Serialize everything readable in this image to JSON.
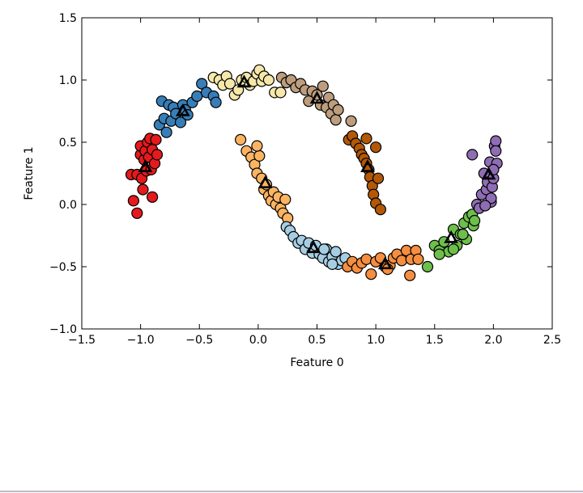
{
  "chart_data": {
    "type": "scatter",
    "xlabel": "Feature 0",
    "ylabel": "Feature 1",
    "xlim": [
      -1.5,
      2.5
    ],
    "ylim": [
      -1.0,
      1.5
    ],
    "xticks": [
      {
        "value": -1.5,
        "label": "−1.5"
      },
      {
        "value": -1.0,
        "label": "−1.0"
      },
      {
        "value": -0.5,
        "label": "−0.5"
      },
      {
        "value": 0.0,
        "label": "0.0"
      },
      {
        "value": 0.5,
        "label": "0.5"
      },
      {
        "value": 1.0,
        "label": "1.0"
      },
      {
        "value": 1.5,
        "label": "1.5"
      },
      {
        "value": 2.0,
        "label": "2.0"
      },
      {
        "value": 2.5,
        "label": "2.5"
      }
    ],
    "yticks": [
      {
        "value": -1.0,
        "label": "−1.0"
      },
      {
        "value": -0.5,
        "label": "−0.5"
      },
      {
        "value": 0.0,
        "label": "0.0"
      },
      {
        "value": 0.5,
        "label": "0.5"
      },
      {
        "value": 1.0,
        "label": "1.0"
      },
      {
        "value": 1.5,
        "label": "1.5"
      }
    ],
    "grid": false,
    "clusters": [
      {
        "color": "#e41a1c",
        "centroid": [
          -0.96,
          0.3
        ],
        "points": [
          [
            -1.08,
            0.24
          ],
          [
            -1.06,
            0.03
          ],
          [
            -1.03,
            -0.07
          ],
          [
            -1.03,
            0.24
          ],
          [
            -1.0,
            0.4
          ],
          [
            -1.0,
            0.47
          ],
          [
            -0.99,
            0.21
          ],
          [
            -0.98,
            0.12
          ],
          [
            -0.97,
            0.36
          ],
          [
            -0.96,
            0.43
          ],
          [
            -0.95,
            0.27
          ],
          [
            -0.94,
            0.5
          ],
          [
            -0.93,
            0.38
          ],
          [
            -0.92,
            0.53
          ],
          [
            -0.91,
            0.28
          ],
          [
            -0.9,
            0.06
          ],
          [
            -0.9,
            0.44
          ],
          [
            -0.88,
            0.33
          ],
          [
            -0.87,
            0.52
          ],
          [
            -0.86,
            0.4
          ]
        ]
      },
      {
        "color": "#377eb8",
        "centroid": [
          -0.64,
          0.75
        ],
        "points": [
          [
            -0.84,
            0.64
          ],
          [
            -0.82,
            0.83
          ],
          [
            -0.8,
            0.69
          ],
          [
            -0.78,
            0.58
          ],
          [
            -0.76,
            0.8
          ],
          [
            -0.74,
            0.67
          ],
          [
            -0.72,
            0.78
          ],
          [
            -0.7,
            0.73
          ],
          [
            -0.66,
            0.66
          ],
          [
            -0.64,
            0.8
          ],
          [
            -0.62,
            0.76
          ],
          [
            -0.6,
            0.72
          ],
          [
            -0.56,
            0.82
          ],
          [
            -0.52,
            0.87
          ],
          [
            -0.48,
            0.97
          ],
          [
            -0.44,
            0.9
          ],
          [
            -0.38,
            0.87
          ],
          [
            -0.36,
            0.82
          ]
        ]
      },
      {
        "color": "#f6e8aa",
        "centroid": [
          -0.12,
          0.98
        ],
        "points": [
          [
            -0.38,
            1.02
          ],
          [
            -0.33,
            1.0
          ],
          [
            -0.3,
            0.96
          ],
          [
            -0.27,
            1.03
          ],
          [
            -0.24,
            0.97
          ],
          [
            -0.2,
            0.88
          ],
          [
            -0.17,
            0.92
          ],
          [
            -0.14,
            1.0
          ],
          [
            -0.1,
            1.02
          ],
          [
            -0.07,
            0.96
          ],
          [
            -0.04,
            0.99
          ],
          [
            -0.01,
            1.05
          ],
          [
            0.01,
            1.08
          ],
          [
            0.03,
            0.99
          ],
          [
            0.05,
            1.03
          ],
          [
            0.09,
            1.0
          ],
          [
            0.14,
            0.9
          ],
          [
            0.19,
            0.9
          ]
        ]
      },
      {
        "color": "#bd9d7e",
        "centroid": [
          0.5,
          0.85
        ],
        "points": [
          [
            0.2,
            1.02
          ],
          [
            0.24,
            0.98
          ],
          [
            0.28,
            1.0
          ],
          [
            0.32,
            0.94
          ],
          [
            0.36,
            0.97
          ],
          [
            0.4,
            0.92
          ],
          [
            0.43,
            0.83
          ],
          [
            0.46,
            0.91
          ],
          [
            0.5,
            0.88
          ],
          [
            0.53,
            0.8
          ],
          [
            0.55,
            0.95
          ],
          [
            0.58,
            0.78
          ],
          [
            0.6,
            0.86
          ],
          [
            0.62,
            0.73
          ],
          [
            0.64,
            0.8
          ],
          [
            0.66,
            0.68
          ],
          [
            0.68,
            0.76
          ],
          [
            0.79,
            0.67
          ]
        ]
      },
      {
        "color": "#b35806",
        "centroid": [
          0.93,
          0.3
        ],
        "points": [
          [
            0.77,
            0.52
          ],
          [
            0.8,
            0.55
          ],
          [
            0.83,
            0.49
          ],
          [
            0.86,
            0.45
          ],
          [
            0.88,
            0.4
          ],
          [
            0.9,
            0.37
          ],
          [
            0.92,
            0.33
          ],
          [
            0.94,
            0.28
          ],
          [
            0.95,
            0.22
          ],
          [
            0.97,
            0.15
          ],
          [
            0.98,
            0.08
          ],
          [
            1.0,
            0.01
          ],
          [
            1.02,
            0.21
          ],
          [
            1.04,
            -0.04
          ],
          [
            1.0,
            0.46
          ],
          [
            0.92,
            0.53
          ]
        ]
      },
      {
        "color": "#fdb462",
        "centroid": [
          0.06,
          0.17
        ],
        "points": [
          [
            -0.15,
            0.52
          ],
          [
            -0.1,
            0.43
          ],
          [
            -0.06,
            0.38
          ],
          [
            -0.03,
            0.32
          ],
          [
            -0.01,
            0.25
          ],
          [
            0.01,
            0.39
          ],
          [
            0.03,
            0.21
          ],
          [
            0.05,
            0.12
          ],
          [
            0.07,
            0.16
          ],
          [
            0.09,
            0.07
          ],
          [
            0.11,
            0.03
          ],
          [
            0.13,
            0.1
          ],
          [
            0.15,
            0.0
          ],
          [
            0.17,
            0.06
          ],
          [
            0.19,
            -0.03
          ],
          [
            0.21,
            -0.07
          ],
          [
            0.23,
            0.04
          ],
          [
            0.25,
            -0.11
          ],
          [
            -0.01,
            0.47
          ]
        ]
      },
      {
        "color": "#a6cee3",
        "centroid": [
          0.47,
          -0.35
        ],
        "points": [
          [
            0.24,
            -0.18
          ],
          [
            0.27,
            -0.21
          ],
          [
            0.3,
            -0.26
          ],
          [
            0.34,
            -0.31
          ],
          [
            0.37,
            -0.29
          ],
          [
            0.4,
            -0.36
          ],
          [
            0.43,
            -0.31
          ],
          [
            0.46,
            -0.39
          ],
          [
            0.49,
            -0.33
          ],
          [
            0.52,
            -0.4
          ],
          [
            0.55,
            -0.43
          ],
          [
            0.58,
            -0.36
          ],
          [
            0.6,
            -0.46
          ],
          [
            0.63,
            -0.42
          ],
          [
            0.66,
            -0.38
          ],
          [
            0.68,
            -0.48
          ],
          [
            0.71,
            -0.45
          ],
          [
            0.74,
            -0.43
          ],
          [
            0.63,
            -0.48
          ],
          [
            0.56,
            -0.36
          ]
        ]
      },
      {
        "color": "#f58e3f",
        "centroid": [
          1.08,
          -0.48
        ],
        "points": [
          [
            0.76,
            -0.5
          ],
          [
            0.8,
            -0.46
          ],
          [
            0.84,
            -0.51
          ],
          [
            0.88,
            -0.47
          ],
          [
            0.92,
            -0.44
          ],
          [
            0.96,
            -0.56
          ],
          [
            1.0,
            -0.46
          ],
          [
            1.04,
            -0.43
          ],
          [
            1.08,
            -0.5
          ],
          [
            1.12,
            -0.49
          ],
          [
            1.15,
            -0.43
          ],
          [
            1.18,
            -0.4
          ],
          [
            1.22,
            -0.45
          ],
          [
            1.26,
            -0.37
          ],
          [
            1.29,
            -0.57
          ],
          [
            1.3,
            -0.44
          ],
          [
            1.34,
            -0.37
          ],
          [
            1.36,
            -0.44
          ],
          [
            1.1,
            -0.52
          ]
        ]
      },
      {
        "color": "#6dbf4b",
        "centroid": [
          1.64,
          -0.27
        ],
        "points": [
          [
            1.44,
            -0.5
          ],
          [
            1.5,
            -0.33
          ],
          [
            1.54,
            -0.37
          ],
          [
            1.58,
            -0.3
          ],
          [
            1.62,
            -0.38
          ],
          [
            1.66,
            -0.2
          ],
          [
            1.69,
            -0.33
          ],
          [
            1.72,
            -0.24
          ],
          [
            1.75,
            -0.15
          ],
          [
            1.77,
            -0.28
          ],
          [
            1.79,
            -0.1
          ],
          [
            1.82,
            -0.08
          ],
          [
            1.83,
            -0.17
          ],
          [
            1.84,
            -0.13
          ],
          [
            1.66,
            -0.36
          ],
          [
            1.54,
            -0.4
          ],
          [
            1.74,
            -0.24
          ]
        ]
      },
      {
        "color": "#8e6db5",
        "centroid": [
          1.96,
          0.24
        ],
        "points": [
          [
            1.82,
            0.4
          ],
          [
            1.86,
            0.0
          ],
          [
            1.88,
            -0.03
          ],
          [
            1.9,
            0.08
          ],
          [
            1.92,
            0.25
          ],
          [
            1.94,
            0.12
          ],
          [
            1.95,
            0.18
          ],
          [
            1.97,
            0.34
          ],
          [
            1.98,
            0.02
          ],
          [
            1.99,
            0.14
          ],
          [
            2.0,
            0.21
          ],
          [
            2.01,
            0.47
          ],
          [
            2.02,
            0.51
          ],
          [
            2.02,
            0.43
          ],
          [
            2.03,
            0.33
          ],
          [
            2.0,
            0.28
          ],
          [
            1.98,
            0.05
          ],
          [
            1.93,
            -0.01
          ]
        ]
      }
    ]
  }
}
